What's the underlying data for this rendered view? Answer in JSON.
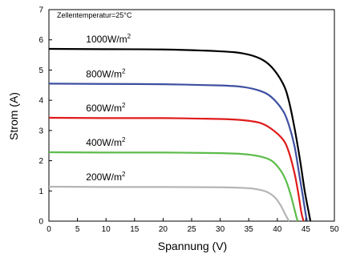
{
  "chart_data": {
    "type": "line",
    "title": "",
    "xlabel": "Spannung (V)",
    "ylabel": "Strom (A)",
    "xlim": [
      0,
      50
    ],
    "ylim": [
      0,
      7
    ],
    "xticks": [
      "0",
      "5",
      "10",
      "15",
      "20",
      "25",
      "30",
      "35",
      "40",
      "45",
      "50"
    ],
    "yticks": [
      "0",
      "1",
      "2",
      "3",
      "4",
      "5",
      "6",
      "7"
    ],
    "grid": false,
    "annotation": "Zellentemperatur=25°C",
    "series": [
      {
        "name": "1000W/m²",
        "color": "#000000",
        "x": [
          0,
          10,
          20,
          30,
          34,
          37,
          39,
          41,
          42,
          43,
          44,
          44.8,
          45.5,
          45.8
        ],
        "values": [
          5.7,
          5.69,
          5.68,
          5.62,
          5.55,
          5.38,
          5.1,
          4.55,
          4.0,
          3.1,
          2.0,
          1.0,
          0.3,
          0
        ]
      },
      {
        "name": "800W/m²",
        "color": "#3d4fa0",
        "x": [
          0,
          10,
          20,
          30,
          34,
          37,
          39,
          41,
          42,
          43,
          43.8,
          44.5,
          45.0,
          45.2
        ],
        "values": [
          4.55,
          4.54,
          4.53,
          4.49,
          4.44,
          4.31,
          4.1,
          3.65,
          3.2,
          2.5,
          1.6,
          0.8,
          0.2,
          0
        ]
      },
      {
        "name": "600W/m²",
        "color": "#e01b1b",
        "x": [
          0,
          10,
          20,
          30,
          34,
          37,
          39,
          41,
          42,
          43,
          43.7,
          44.2,
          44.6
        ],
        "values": [
          3.42,
          3.41,
          3.41,
          3.38,
          3.34,
          3.25,
          3.05,
          2.7,
          2.3,
          1.6,
          0.9,
          0.3,
          0
        ]
      },
      {
        "name": "400W/m²",
        "color": "#5cbc4a",
        "x": [
          0,
          10,
          20,
          30,
          34,
          37,
          39,
          40.5,
          41.5,
          42.3,
          43.0,
          43.4,
          43.6
        ],
        "values": [
          2.28,
          2.27,
          2.27,
          2.25,
          2.22,
          2.14,
          2.0,
          1.7,
          1.35,
          0.9,
          0.4,
          0.1,
          0
        ]
      },
      {
        "name": "200W/m²",
        "color": "#b5b5b5",
        "x": [
          0,
          10,
          20,
          30,
          34,
          36,
          38,
          39.5,
          40.5,
          41.2,
          41.8,
          42.1
        ],
        "values": [
          1.14,
          1.13,
          1.13,
          1.12,
          1.1,
          1.07,
          0.98,
          0.8,
          0.55,
          0.3,
          0.08,
          0
        ]
      }
    ]
  }
}
